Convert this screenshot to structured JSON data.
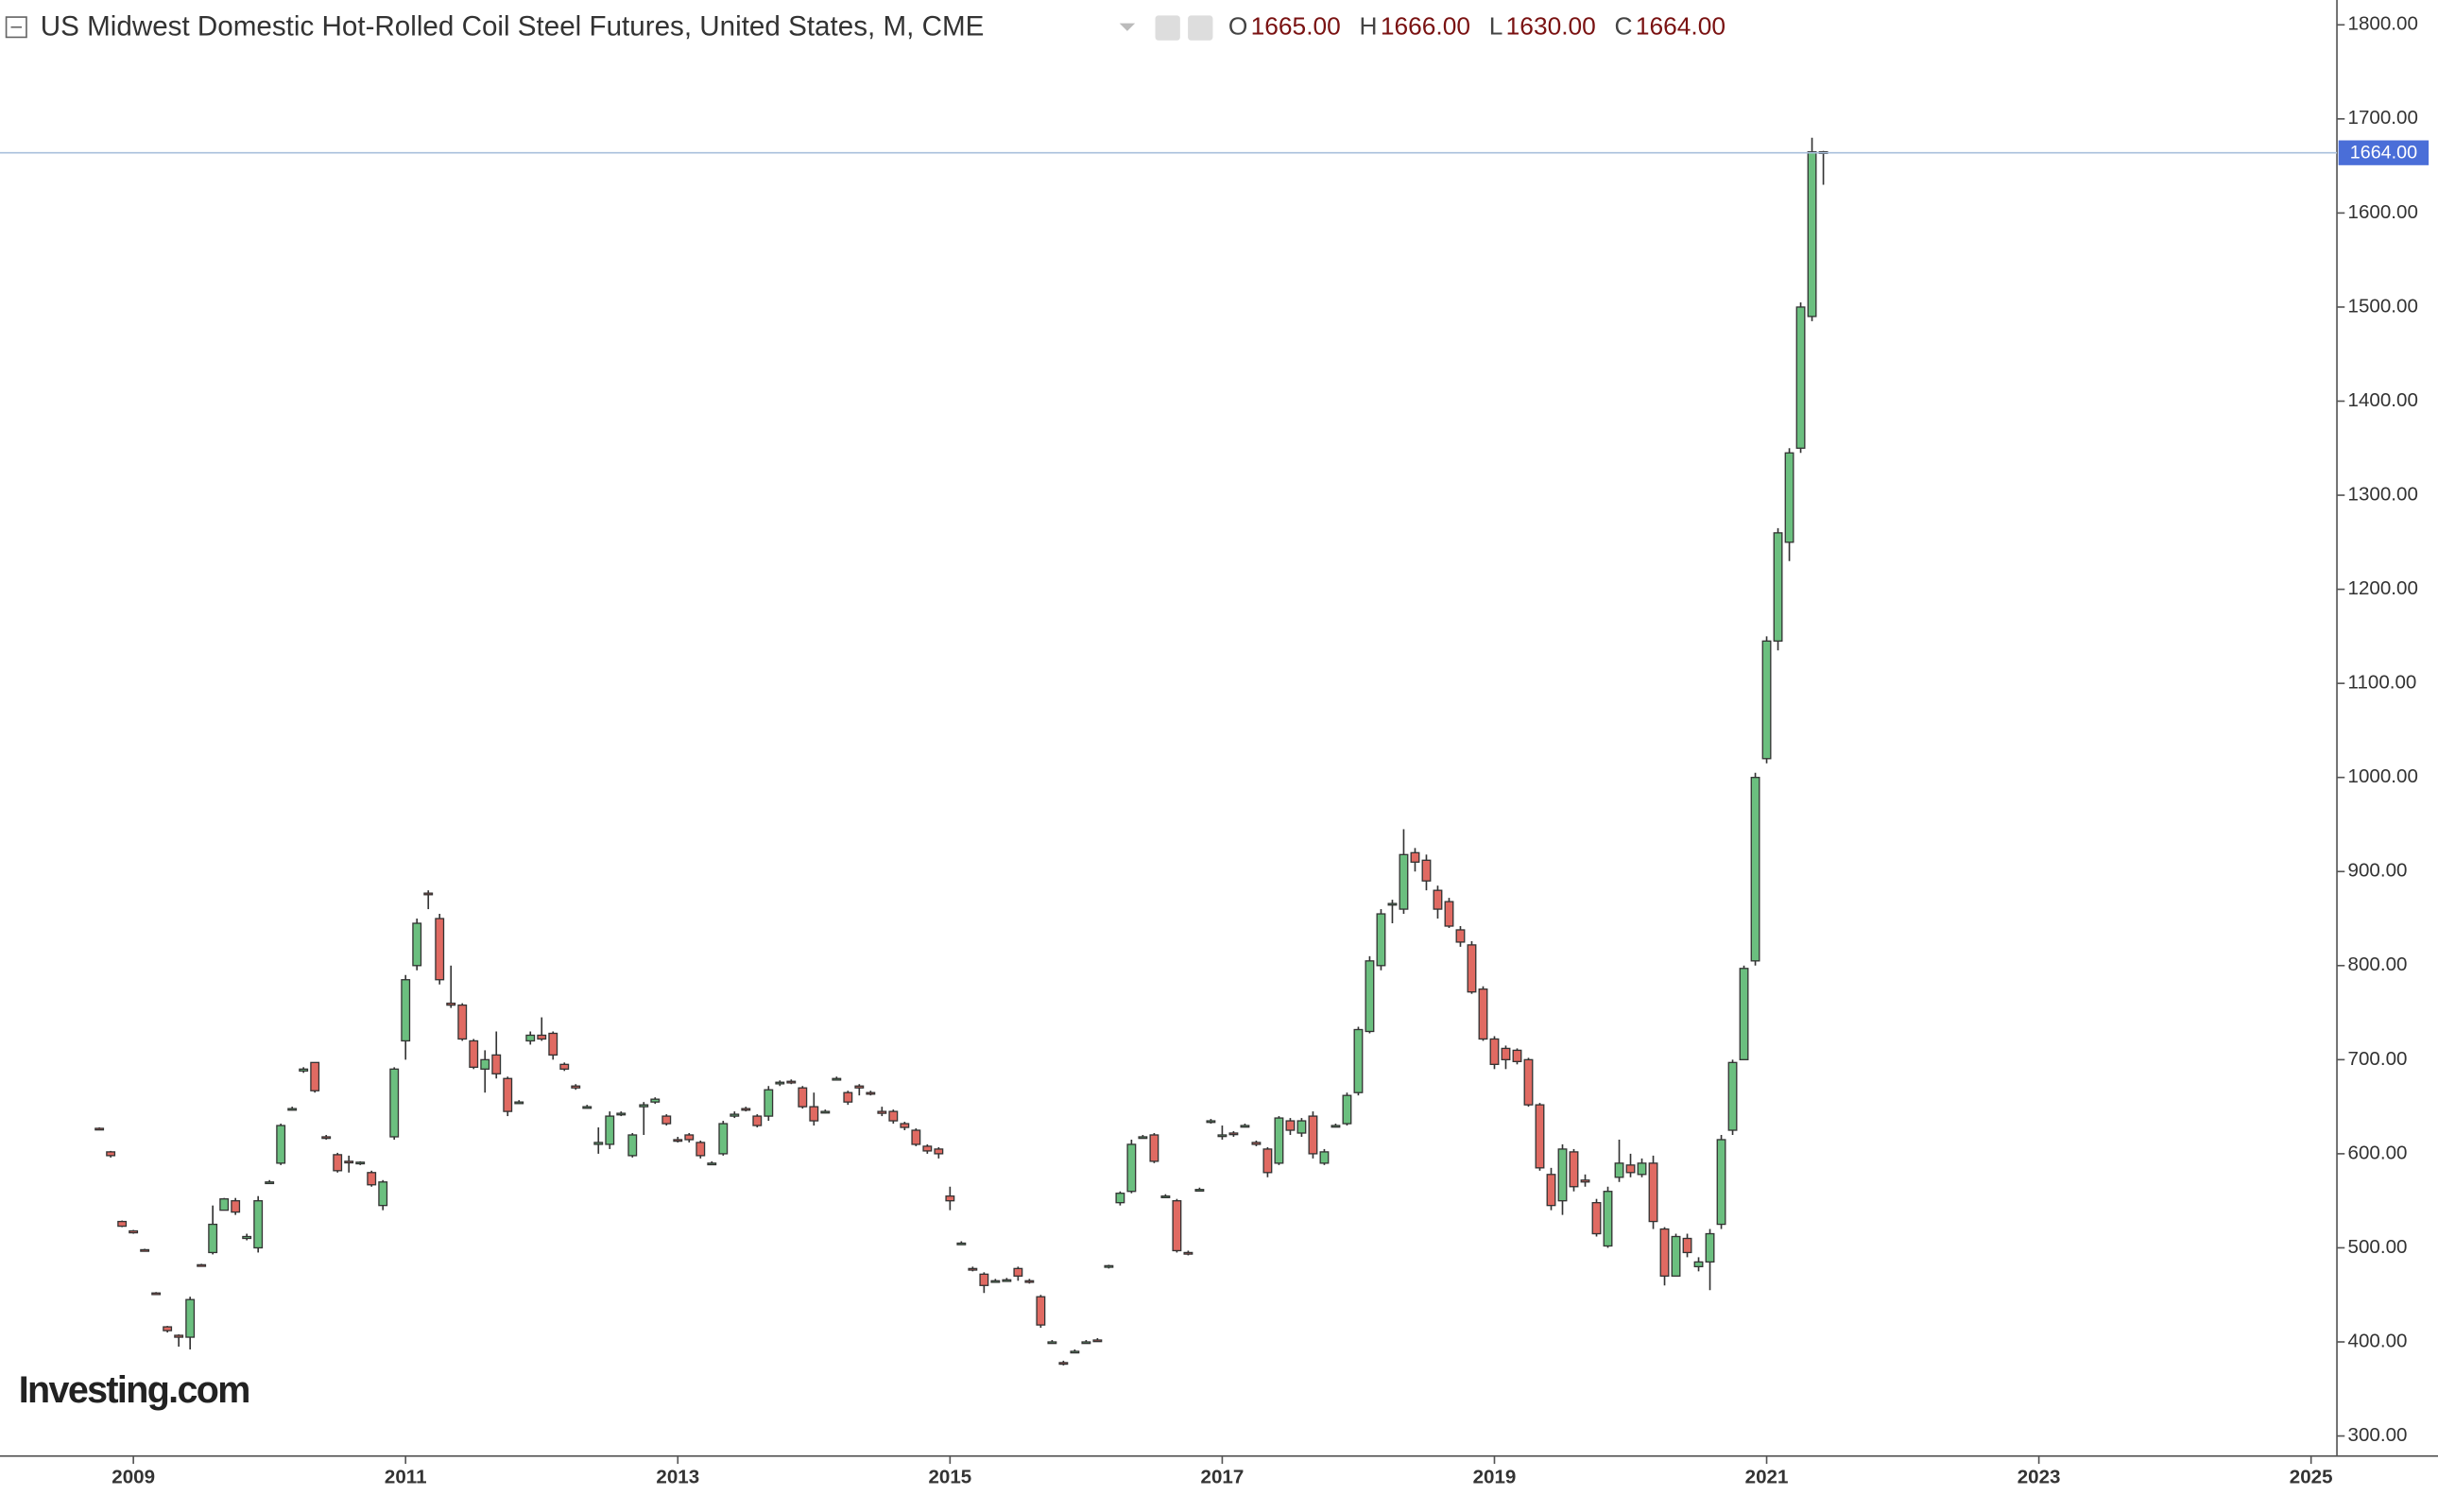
{
  "chart_data": {
    "type": "candlestick",
    "title": "US Midwest Domestic Hot-Rolled Coil Steel Futures, United States, M, CME",
    "legend": [
      {
        "key": "O",
        "value": "1665.00"
      },
      {
        "key": "H",
        "value": "1666.00"
      },
      {
        "key": "L",
        "value": "1630.00"
      },
      {
        "key": "C",
        "value": "1664.00"
      }
    ],
    "watermark": "Investing.com",
    "up_color": "#6bbf7f",
    "down_color": "#e06a62",
    "legend_color": "#7a1212",
    "last_price": {
      "value": 1664,
      "label": "1664.00"
    },
    "xlim": [
      2008.02,
      2025.19
    ],
    "xticks": [
      2009,
      2011,
      2013,
      2015,
      2017,
      2019,
      2021,
      2023,
      2025
    ],
    "ylim": [
      278.6,
      1826.4
    ],
    "yticks": [
      {
        "value": 300,
        "label": "300.00"
      },
      {
        "value": 400,
        "label": "400.00"
      },
      {
        "value": 500,
        "label": "500.00"
      },
      {
        "value": 600,
        "label": "600.00"
      },
      {
        "value": 700,
        "label": "700.00"
      },
      {
        "value": 800,
        "label": "800.00"
      },
      {
        "value": 900,
        "label": "900.00"
      },
      {
        "value": 1000,
        "label": "1000.00"
      },
      {
        "value": 1100,
        "label": "1100.00"
      },
      {
        "value": 1200,
        "label": "1200.00"
      },
      {
        "value": 1300,
        "label": "1300.00"
      },
      {
        "value": 1400,
        "label": "1400.00"
      },
      {
        "value": 1500,
        "label": "1500.00"
      },
      {
        "value": 1600,
        "label": "1600.00"
      },
      {
        "value": 1700,
        "label": "1700.00"
      },
      {
        "value": 1800,
        "label": "1800.00"
      }
    ],
    "x": [
      2008.75,
      2008.8333,
      2008.9167,
      2009,
      2009.0833,
      2009.1667,
      2009.25,
      2009.3333,
      2009.4167,
      2009.5,
      2009.5833,
      2009.6667,
      2009.75,
      2009.8333,
      2009.9167,
      2010,
      2010.0833,
      2010.1667,
      2010.25,
      2010.3333,
      2010.4167,
      2010.5,
      2010.5833,
      2010.6667,
      2010.75,
      2010.8333,
      2010.9167,
      2011,
      2011.0833,
      2011.1667,
      2011.25,
      2011.3333,
      2011.4167,
      2011.5,
      2011.5833,
      2011.6667,
      2011.75,
      2011.8333,
      2011.9167,
      2012,
      2012.0833,
      2012.1667,
      2012.25,
      2012.3333,
      2012.4167,
      2012.5,
      2012.5833,
      2012.6667,
      2012.75,
      2012.8333,
      2012.9167,
      2013,
      2013.0833,
      2013.1667,
      2013.25,
      2013.3333,
      2013.4167,
      2013.5,
      2013.5833,
      2013.6667,
      2013.75,
      2013.8333,
      2013.9167,
      2014,
      2014.0833,
      2014.1667,
      2014.25,
      2014.3333,
      2014.4167,
      2014.5,
      2014.5833,
      2014.6667,
      2014.75,
      2014.8333,
      2014.9167,
      2015,
      2015.0833,
      2015.1667,
      2015.25,
      2015.3333,
      2015.4167,
      2015.5,
      2015.5833,
      2015.6667,
      2015.75,
      2015.8333,
      2015.9167,
      2016,
      2016.0833,
      2016.1667,
      2016.25,
      2016.3333,
      2016.4167,
      2016.5,
      2016.5833,
      2016.6667,
      2016.75,
      2016.8333,
      2016.9167,
      2017,
      2017.0833,
      2017.1667,
      2017.25,
      2017.3333,
      2017.4167,
      2017.5,
      2017.5833,
      2017.6667,
      2017.75,
      2017.8333,
      2017.9167,
      2018,
      2018.0833,
      2018.1667,
      2018.25,
      2018.3333,
      2018.4167,
      2018.5,
      2018.5833,
      2018.6667,
      2018.75,
      2018.8333,
      2018.9167,
      2019,
      2019.0833,
      2019.1667,
      2019.25,
      2019.3333,
      2019.4167,
      2019.5,
      2019.5833,
      2019.6667,
      2019.75,
      2019.8333,
      2019.9167,
      2020,
      2020.0833,
      2020.1667,
      2020.25,
      2020.3333,
      2020.4167,
      2020.5,
      2020.5833,
      2020.6667,
      2020.75,
      2020.8333,
      2020.9167,
      2021,
      2021.0833,
      2021.1667,
      2021.25,
      2021.3333,
      2021.4167
    ],
    "ohlc": [
      [
        627,
        628,
        625,
        626
      ],
      [
        602,
        603,
        596,
        598
      ],
      [
        528,
        529,
        522,
        523
      ],
      [
        518,
        519,
        515,
        516
      ],
      [
        498,
        499,
        496,
        497
      ],
      [
        452,
        453,
        450,
        451
      ],
      [
        416,
        417,
        410,
        412
      ],
      [
        407,
        408,
        395,
        405
      ],
      [
        405,
        448,
        392,
        445
      ],
      [
        482,
        483,
        480,
        481
      ],
      [
        495,
        545,
        493,
        525
      ],
      [
        540,
        553,
        540,
        552
      ],
      [
        550,
        553,
        535,
        538
      ],
      [
        510,
        515,
        508,
        512
      ],
      [
        500,
        555,
        495,
        550
      ],
      [
        570,
        572,
        568,
        570
      ],
      [
        590,
        632,
        588,
        630
      ],
      [
        648,
        650,
        646,
        648
      ],
      [
        688,
        692,
        686,
        690
      ],
      [
        697,
        697,
        665,
        667
      ],
      [
        618,
        620,
        615,
        617
      ],
      [
        599,
        601,
        580,
        582
      ],
      [
        592,
        598,
        580,
        591
      ],
      [
        590,
        592,
        588,
        591
      ],
      [
        580,
        582,
        565,
        567
      ],
      [
        545,
        572,
        540,
        570
      ],
      [
        618,
        692,
        615,
        690
      ],
      [
        720,
        790,
        700,
        785
      ],
      [
        800,
        850,
        795,
        845
      ],
      [
        877,
        880,
        860,
        876
      ],
      [
        850,
        855,
        780,
        785
      ],
      [
        760,
        800,
        755,
        758
      ],
      [
        758,
        760,
        720,
        722
      ],
      [
        720,
        722,
        690,
        692
      ],
      [
        690,
        710,
        665,
        700
      ],
      [
        705,
        730,
        680,
        685
      ],
      [
        680,
        682,
        640,
        645
      ],
      [
        655,
        657,
        653,
        655
      ],
      [
        720,
        730,
        716,
        726
      ],
      [
        726,
        745,
        720,
        722
      ],
      [
        728,
        730,
        700,
        705
      ],
      [
        695,
        697,
        688,
        690
      ],
      [
        672,
        674,
        668,
        670
      ],
      [
        650,
        652,
        648,
        650
      ],
      [
        610,
        628,
        600,
        612
      ],
      [
        610,
        645,
        605,
        640
      ],
      [
        642,
        645,
        640,
        643
      ],
      [
        598,
        622,
        596,
        620
      ],
      [
        650,
        655,
        620,
        652
      ],
      [
        655,
        660,
        653,
        658
      ],
      [
        640,
        642,
        630,
        632
      ],
      [
        615,
        618,
        612,
        614
      ],
      [
        620,
        622,
        612,
        615
      ],
      [
        612,
        614,
        595,
        598
      ],
      [
        590,
        592,
        588,
        590
      ],
      [
        600,
        635,
        598,
        632
      ],
      [
        640,
        645,
        638,
        642
      ],
      [
        648,
        650,
        645,
        647
      ],
      [
        640,
        642,
        628,
        630
      ],
      [
        640,
        672,
        635,
        668
      ],
      [
        675,
        678,
        672,
        676
      ],
      [
        677,
        679,
        674,
        676
      ],
      [
        670,
        672,
        648,
        650
      ],
      [
        650,
        665,
        630,
        635
      ],
      [
        645,
        647,
        643,
        645
      ],
      [
        680,
        682,
        678,
        680
      ],
      [
        665,
        667,
        652,
        655
      ],
      [
        672,
        674,
        662,
        670
      ],
      [
        665,
        667,
        662,
        664
      ],
      [
        645,
        650,
        640,
        643
      ],
      [
        645,
        647,
        632,
        635
      ],
      [
        632,
        634,
        625,
        628
      ],
      [
        625,
        627,
        608,
        610
      ],
      [
        608,
        610,
        600,
        603
      ],
      [
        605,
        607,
        595,
        600
      ],
      [
        555,
        565,
        540,
        550
      ],
      [
        505,
        507,
        503,
        505
      ],
      [
        478,
        480,
        475,
        477
      ],
      [
        472,
        474,
        452,
        460
      ],
      [
        465,
        467,
        463,
        465
      ],
      [
        466,
        468,
        464,
        466
      ],
      [
        478,
        480,
        465,
        470
      ],
      [
        465,
        467,
        462,
        464
      ],
      [
        448,
        450,
        415,
        418
      ],
      [
        400,
        402,
        398,
        400
      ],
      [
        378,
        380,
        375,
        377
      ],
      [
        390,
        392,
        388,
        390
      ],
      [
        400,
        402,
        398,
        400
      ],
      [
        402,
        404,
        400,
        401
      ],
      [
        480,
        482,
        478,
        481
      ],
      [
        548,
        560,
        545,
        558
      ],
      [
        560,
        615,
        558,
        610
      ],
      [
        618,
        620,
        616,
        618
      ],
      [
        620,
        622,
        590,
        592
      ],
      [
        555,
        557,
        553,
        555
      ],
      [
        550,
        552,
        495,
        497
      ],
      [
        495,
        497,
        492,
        494
      ],
      [
        562,
        564,
        560,
        562
      ],
      [
        635,
        637,
        632,
        635
      ],
      [
        620,
        630,
        615,
        620
      ],
      [
        622,
        624,
        618,
        621
      ],
      [
        630,
        632,
        628,
        630
      ],
      [
        612,
        614,
        608,
        610
      ],
      [
        605,
        607,
        575,
        580
      ],
      [
        590,
        640,
        588,
        638
      ],
      [
        635,
        638,
        620,
        625
      ],
      [
        622,
        638,
        618,
        635
      ],
      [
        640,
        645,
        595,
        600
      ],
      [
        590,
        605,
        588,
        602
      ],
      [
        630,
        632,
        628,
        630
      ],
      [
        632,
        665,
        630,
        662
      ],
      [
        665,
        735,
        662,
        732
      ],
      [
        730,
        810,
        728,
        805
      ],
      [
        800,
        860,
        795,
        855
      ],
      [
        865,
        870,
        845,
        866
      ],
      [
        860,
        945,
        855,
        918
      ],
      [
        920,
        925,
        900,
        910
      ],
      [
        912,
        918,
        880,
        890
      ],
      [
        880,
        885,
        850,
        860
      ],
      [
        868,
        872,
        840,
        842
      ],
      [
        838,
        842,
        820,
        825
      ],
      [
        822,
        826,
        770,
        772
      ],
      [
        775,
        778,
        720,
        722
      ],
      [
        722,
        725,
        690,
        695
      ],
      [
        712,
        715,
        690,
        700
      ],
      [
        710,
        712,
        695,
        698
      ],
      [
        700,
        702,
        650,
        652
      ],
      [
        652,
        654,
        582,
        585
      ],
      [
        578,
        585,
        540,
        545
      ],
      [
        550,
        610,
        535,
        605
      ],
      [
        602,
        605,
        560,
        565
      ],
      [
        572,
        578,
        565,
        570
      ],
      [
        548,
        552,
        512,
        515
      ],
      [
        502,
        565,
        500,
        560
      ],
      [
        575,
        615,
        570,
        590
      ],
      [
        588,
        600,
        575,
        580
      ],
      [
        578,
        595,
        575,
        590
      ],
      [
        590,
        598,
        520,
        528
      ],
      [
        520,
        522,
        460,
        470
      ],
      [
        470,
        515,
        470,
        512
      ],
      [
        510,
        515,
        490,
        495
      ],
      [
        480,
        490,
        475,
        485
      ],
      [
        485,
        520,
        455,
        515
      ],
      [
        525,
        620,
        520,
        615
      ],
      [
        625,
        700,
        620,
        697
      ],
      [
        700,
        800,
        700,
        797
      ],
      [
        805,
        1005,
        800,
        1000
      ],
      [
        1020,
        1150,
        1015,
        1145
      ],
      [
        1145,
        1265,
        1135,
        1260
      ],
      [
        1250,
        1350,
        1230,
        1345
      ],
      [
        1350,
        1505,
        1345,
        1500
      ],
      [
        1490,
        1680,
        1485,
        1665
      ],
      [
        1665,
        1666,
        1630,
        1664
      ]
    ]
  }
}
